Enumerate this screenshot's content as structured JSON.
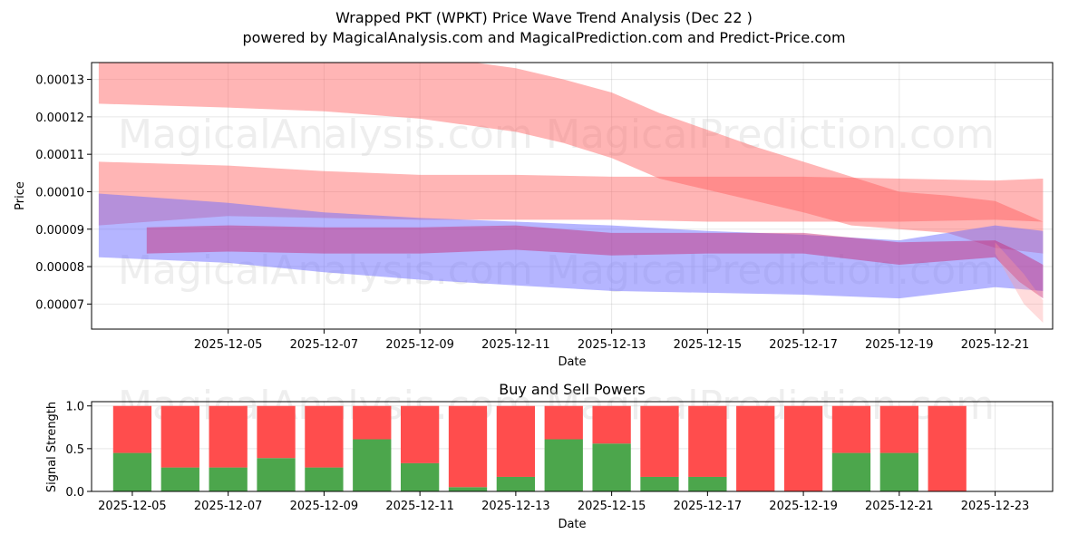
{
  "title_line1": "Wrapped PKT (WPKT) Price Wave Trend Analysis (Dec 22 )",
  "title_line2": "powered by MagicalAnalysis.com and MagicalPrediction.com and Predict-Price.com",
  "watermarks": [
    "MagicalAnalysis.com",
    "MagicalPrediction.com"
  ],
  "colors": {
    "red_band": "#ff5a5a",
    "blue_band": "#6b6bff",
    "buy": "#4ca64c",
    "sell": "#ff4d4d"
  },
  "chart_data": [
    {
      "type": "area",
      "title": "",
      "xlabel": "Date",
      "ylabel": "Price",
      "grid": true,
      "x_start": "2025-12-03",
      "x_tick_labels": [
        "2025-12-05",
        "2025-12-07",
        "2025-12-09",
        "2025-12-11",
        "2025-12-13",
        "2025-12-15",
        "2025-12-17",
        "2025-12-19",
        "2025-12-21"
      ],
      "x_tick_days": [
        2,
        4,
        6,
        8,
        10,
        12,
        14,
        16,
        18
      ],
      "xlim_days": [
        -0.85,
        19.2
      ],
      "y_tick_labels": [
        "0.00007",
        "0.00008",
        "0.00009",
        "0.00010",
        "0.00011",
        "0.00012",
        "0.00013"
      ],
      "y_tick_values": [
        7e-05,
        8e-05,
        9e-05,
        0.0001,
        0.00011,
        0.00012,
        0.00013
      ],
      "ylim": [
        6.33e-05,
        0.0001345
      ],
      "series": [
        {
          "name": "upper red wave",
          "color": "#ff5a5a",
          "opacity": 0.45,
          "days": [
            -0.7,
            2,
            4,
            6,
            8,
            9,
            10,
            11,
            12,
            13,
            14,
            15,
            16,
            17,
            18,
            19
          ],
          "upper": [
            0.000139,
            0.000138,
            0.0001375,
            0.0001365,
            0.000133,
            0.00013,
            0.0001265,
            0.000121,
            0.0001165,
            0.000112,
            0.000108,
            0.000104,
            0.0001,
            9.9e-05,
            9.75e-05,
            9.2e-05
          ],
          "lower": [
            0.0001235,
            0.0001225,
            0.0001215,
            0.0001195,
            0.000116,
            0.000113,
            0.000109,
            0.0001035,
            0.0001005,
            9.75e-05,
            9.45e-05,
            9.1e-05,
            9e-05,
            8.9e-05,
            8.5e-05,
            8.35e-05
          ]
        },
        {
          "name": "middle red wave",
          "color": "#ff5a5a",
          "opacity": 0.45,
          "days": [
            -0.7,
            2,
            4,
            6,
            8,
            10,
            12,
            14,
            16,
            18,
            19
          ],
          "upper": [
            0.000108,
            0.000107,
            0.0001055,
            0.0001045,
            0.0001045,
            0.000104,
            0.000104,
            0.000104,
            0.0001035,
            0.000103,
            0.0001035
          ],
          "lower": [
            9.1e-05,
            9.35e-05,
            9.3e-05,
            9.25e-05,
            9.25e-05,
            9.25e-05,
            9.2e-05,
            9.2e-05,
            9.2e-05,
            9.25e-05,
            9.2e-05
          ]
        },
        {
          "name": "lower blue wave",
          "color": "#6b6bff",
          "opacity": 0.5,
          "days": [
            -0.7,
            2,
            4,
            6,
            8,
            10,
            12,
            14,
            16,
            18,
            19
          ],
          "upper": [
            9.95e-05,
            9.7e-05,
            9.45e-05,
            9.3e-05,
            9.2e-05,
            9.1e-05,
            8.95e-05,
            8.85e-05,
            8.7e-05,
            9.1e-05,
            8.95e-05
          ],
          "lower": [
            8.25e-05,
            8.1e-05,
            7.85e-05,
            7.65e-05,
            7.5e-05,
            7.35e-05,
            7.3e-05,
            7.25e-05,
            7.15e-05,
            7.45e-05,
            7.35e-05
          ]
        },
        {
          "name": "core price band",
          "color": "#c8246e",
          "opacity": 0.45,
          "days": [
            0.3,
            2,
            4,
            6,
            8,
            10,
            12,
            14,
            16,
            18,
            18.5,
            19
          ],
          "upper": [
            9.05e-05,
            9.1e-05,
            9.05e-05,
            9.05e-05,
            9.1e-05,
            8.9e-05,
            8.9e-05,
            8.9e-05,
            8.65e-05,
            8.7e-05,
            8.4e-05,
            8.05e-05
          ],
          "lower": [
            8.35e-05,
            8.4e-05,
            8.35e-05,
            8.35e-05,
            8.45e-05,
            8.3e-05,
            8.35e-05,
            8.35e-05,
            8.05e-05,
            8.25e-05,
            7.6e-05,
            7.15e-05
          ]
        },
        {
          "name": "forecast fan",
          "color": "#ff9a9a",
          "opacity": 0.35,
          "days": [
            18,
            18.6,
            19
          ],
          "upper": [
            8.65e-05,
            7.8e-05,
            7.1e-05
          ],
          "lower": [
            8.35e-05,
            7e-05,
            6.5e-05
          ]
        }
      ]
    },
    {
      "type": "bar",
      "title": "Buy and Sell Powers",
      "xlabel": "Date",
      "ylabel": "Signal Strength",
      "grid": true,
      "x_start": "2025-12-05",
      "x_tick_labels": [
        "2025-12-05",
        "2025-12-07",
        "2025-12-09",
        "2025-12-11",
        "2025-12-13",
        "2025-12-15",
        "2025-12-17",
        "2025-12-19",
        "2025-12-21",
        "2025-12-23"
      ],
      "x_tick_days": [
        0,
        2,
        4,
        6,
        8,
        10,
        12,
        14,
        16,
        18
      ],
      "xlim_days": [
        -0.85,
        19.2
      ],
      "y_tick_labels": [
        "0.0",
        "0.5",
        "1.0"
      ],
      "y_tick_values": [
        0,
        0.5,
        1.0
      ],
      "ylim": [
        0,
        1.05
      ],
      "categories": [
        "2025-12-05",
        "2025-12-06",
        "2025-12-07",
        "2025-12-08",
        "2025-12-09",
        "2025-12-10",
        "2025-12-11",
        "2025-12-12",
        "2025-12-13",
        "2025-12-14",
        "2025-12-15",
        "2025-12-16",
        "2025-12-17",
        "2025-12-18",
        "2025-12-19",
        "2025-12-20",
        "2025-12-21",
        "2025-12-22"
      ],
      "series": [
        {
          "name": "Buy Power",
          "color": "#4ca64c",
          "values": [
            0.45,
            0.28,
            0.28,
            0.39,
            0.28,
            0.61,
            0.33,
            0.05,
            0.17,
            0.61,
            0.56,
            0.17,
            0.17,
            0.0,
            0.0,
            0.45,
            0.45,
            0.0
          ]
        },
        {
          "name": "Sell Power",
          "color": "#ff4d4d",
          "values": [
            0.55,
            0.72,
            0.72,
            0.61,
            0.72,
            0.39,
            0.67,
            0.95,
            0.83,
            0.39,
            0.44,
            0.83,
            0.83,
            1.0,
            1.0,
            0.55,
            0.55,
            1.0
          ]
        }
      ]
    }
  ]
}
